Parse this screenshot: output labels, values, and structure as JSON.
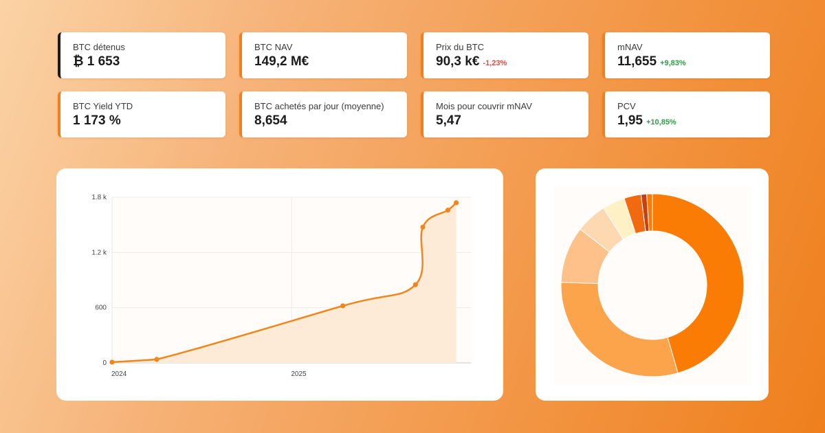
{
  "kpis": [
    {
      "label": "BTC détenus",
      "value": "₿ 1 653",
      "change": "",
      "trend": "",
      "accent": "#1f1a17"
    },
    {
      "label": "BTC NAV",
      "value": "149,2 M€",
      "change": "",
      "trend": "",
      "accent": "#f07f1c"
    },
    {
      "label": "Prix du BTC",
      "value": "90,3 k€",
      "change": "-1,23%",
      "trend": "neg",
      "accent": "#f07f1c"
    },
    {
      "label": "mNAV",
      "value": "11,655",
      "change": "+9,83%",
      "trend": "pos",
      "accent": "#f07f1c"
    },
    {
      "label": "BTC Yield YTD",
      "value": "1 173 %",
      "change": "",
      "trend": "",
      "accent": "#f07f1c"
    },
    {
      "label": "BTC achetés par jour (moyenne)",
      "value": "8,654",
      "change": "",
      "trend": "",
      "accent": "#f07f1c"
    },
    {
      "label": "Mois pour couvrir mNAV",
      "value": "5,47",
      "change": "",
      "trend": "",
      "accent": "#f07f1c"
    },
    {
      "label": "PCV",
      "value": "1,95",
      "change": "+10,85%",
      "trend": "pos",
      "accent": "#f07f1c"
    }
  ],
  "colors": {
    "accent": "#f07f1c",
    "negative": "#e04848",
    "positive": "#2e9d46",
    "line": "#f0861e",
    "area": "#fdebd8"
  },
  "chart_data": [
    {
      "type": "area",
      "title": "",
      "xlabel": "",
      "ylabel": "",
      "x_tick_labels": [
        "2024",
        "2025"
      ],
      "y_tick_labels": [
        "0",
        "600",
        "1.2 k",
        "1.8 k"
      ],
      "y_ticks": [
        0,
        600,
        1200,
        1800
      ],
      "ylim": [
        0,
        1800
      ],
      "xlim": [
        "2024-01-01",
        "2026-01-01"
      ],
      "grid": true,
      "series": [
        {
          "x": [
            "2024-01-01",
            "2024-04-01",
            "2025-04-15",
            "2025-09-10",
            "2025-09-25",
            "2025-11-15",
            "2025-12-02"
          ],
          "values": [
            8,
            38,
            620,
            850,
            1475,
            1660,
            1740
          ]
        }
      ]
    },
    {
      "type": "pie",
      "title": "",
      "donut": true,
      "slices": [
        {
          "value": 45.5,
          "color": "#fb7c05"
        },
        {
          "value": 30.0,
          "color": "#fca44c"
        },
        {
          "value": 10.0,
          "color": "#fdc189"
        },
        {
          "value": 5.5,
          "color": "#fdd8b1"
        },
        {
          "value": 4.0,
          "color": "#fef1c6"
        },
        {
          "value": 3.0,
          "color": "#f16a10"
        },
        {
          "value": 1.0,
          "color": "#c84010"
        },
        {
          "value": 1.0,
          "color": "#fb7c05"
        }
      ]
    }
  ]
}
